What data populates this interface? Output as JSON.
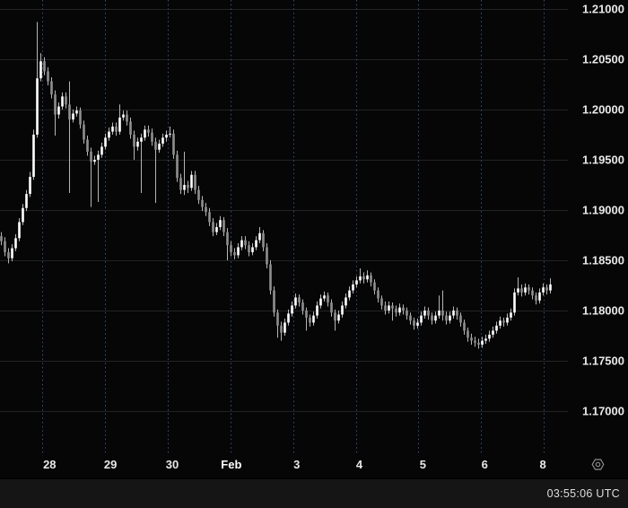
{
  "status_bar": {
    "clock": "03:55:06 UTC"
  },
  "icons": {
    "settings": "hexagon-with-dot"
  },
  "chart_data": {
    "type": "candlestick",
    "title": "",
    "xlabel": "",
    "ylabel": "",
    "grid": true,
    "legend": "none",
    "y_axis": {
      "side": "right",
      "tick_step": 0.005,
      "visible_range": [
        1.1658,
        1.2109
      ],
      "ticks": [
        {
          "label": "1.21000",
          "price": 1.21
        },
        {
          "label": "1.20500",
          "price": 1.205
        },
        {
          "label": "1.20000",
          "price": 1.2
        },
        {
          "label": "1.19500",
          "price": 1.195
        },
        {
          "label": "1.19000",
          "price": 1.19
        },
        {
          "label": "1.18500",
          "price": 1.185
        },
        {
          "label": "1.18000",
          "price": 1.18
        },
        {
          "label": "1.17500",
          "price": 1.175
        },
        {
          "label": "1.17000",
          "price": 1.17
        }
      ]
    },
    "x_axis": {
      "ticks": [
        {
          "label": "28",
          "is_month": false
        },
        {
          "label": "29",
          "is_month": false
        },
        {
          "label": "30",
          "is_month": false
        },
        {
          "label": "Feb",
          "is_month": true
        },
        {
          "label": "3",
          "is_month": false
        },
        {
          "label": "4",
          "is_month": false
        },
        {
          "label": "5",
          "is_month": false
        },
        {
          "label": "6",
          "is_month": false
        },
        {
          "label": "8",
          "is_month": false
        }
      ]
    },
    "colors": {
      "background": "#060606",
      "candle_up": "#ffffff",
      "candle_down": "#8f8f8f",
      "wick": "#b5b5b5",
      "grid_horizontal": "#232323",
      "grid_vertical_dashed": "#30508c",
      "axis_text": "#e8e8e8",
      "month_text": "#ffffff",
      "icon": "#8f8f8f"
    },
    "candles_ohlc": [
      [
        1.1874,
        1.1878,
        1.1865,
        1.1869
      ],
      [
        1.1869,
        1.1873,
        1.1854,
        1.1858
      ],
      [
        1.1858,
        1.1862,
        1.1847,
        1.1852
      ],
      [
        1.1852,
        1.1866,
        1.1849,
        1.1862
      ],
      [
        1.1862,
        1.1876,
        1.1859,
        1.1872
      ],
      [
        1.1872,
        1.1892,
        1.1869,
        1.1888
      ],
      [
        1.1888,
        1.1906,
        1.1885,
        1.1902
      ],
      [
        1.1902,
        1.192,
        1.1899,
        1.1916
      ],
      [
        1.1916,
        1.1938,
        1.1913,
        1.1933
      ],
      [
        1.1933,
        1.198,
        1.193,
        1.1975
      ],
      [
        1.1975,
        1.2087,
        1.1972,
        1.2031
      ],
      [
        1.2031,
        1.2056,
        1.2028,
        1.2048
      ],
      [
        1.2048,
        1.2052,
        1.2034,
        1.2038
      ],
      [
        1.2038,
        1.2042,
        1.2024,
        1.2028
      ],
      [
        1.2028,
        1.2032,
        1.2011,
        1.2015
      ],
      [
        1.2015,
        1.2019,
        1.1974,
        1.1995
      ],
      [
        1.1995,
        1.2007,
        1.1991,
        1.2003
      ],
      [
        1.2003,
        1.2017,
        1.2,
        1.2013
      ],
      [
        1.2013,
        1.2017,
        1.2001,
        1.2005
      ],
      [
        1.2005,
        1.2028,
        1.1917,
        1.199
      ],
      [
        1.199,
        1.2,
        1.1987,
        1.1996
      ],
      [
        1.1996,
        1.2003,
        1.1993,
        1.1999
      ],
      [
        1.1999,
        1.2002,
        1.1981,
        1.1985
      ],
      [
        1.1985,
        1.1989,
        1.1966,
        1.197
      ],
      [
        1.197,
        1.1974,
        1.1954,
        1.1958
      ],
      [
        1.1958,
        1.1962,
        1.1903,
        1.1948
      ],
      [
        1.1948,
        1.1954,
        1.1945,
        1.195
      ],
      [
        1.195,
        1.1959,
        1.1908,
        1.1955
      ],
      [
        1.1955,
        1.1967,
        1.1952,
        1.1963
      ],
      [
        1.1963,
        1.1976,
        1.196,
        1.1972
      ],
      [
        1.1972,
        1.1982,
        1.1969,
        1.1978
      ],
      [
        1.1978,
        1.1987,
        1.1975,
        1.1983
      ],
      [
        1.1983,
        1.1987,
        1.1974,
        1.1978
      ],
      [
        1.1978,
        1.2005,
        1.1975,
        1.1992
      ],
      [
        1.1992,
        1.1999,
        1.1989,
        1.1995
      ],
      [
        1.1995,
        1.1999,
        1.1984,
        1.1988
      ],
      [
        1.1988,
        1.1992,
        1.1971,
        1.1975
      ],
      [
        1.1975,
        1.1979,
        1.195,
        1.1963
      ],
      [
        1.1963,
        1.1972,
        1.1959,
        1.1968
      ],
      [
        1.1968,
        1.1976,
        1.1917,
        1.1972
      ],
      [
        1.1972,
        1.1984,
        1.1969,
        1.198
      ],
      [
        1.198,
        1.1984,
        1.1973,
        1.1977
      ],
      [
        1.1977,
        1.1981,
        1.1964,
        1.1968
      ],
      [
        1.1968,
        1.1972,
        1.1907,
        1.196
      ],
      [
        1.196,
        1.197,
        1.1957,
        1.1966
      ],
      [
        1.1966,
        1.1976,
        1.1963,
        1.1972
      ],
      [
        1.1972,
        1.1979,
        1.1968,
        1.1975
      ],
      [
        1.1975,
        1.1983,
        1.1972,
        1.1976
      ],
      [
        1.1976,
        1.198,
        1.1951,
        1.1955
      ],
      [
        1.1955,
        1.1959,
        1.1928,
        1.1932
      ],
      [
        1.1932,
        1.1936,
        1.1916,
        1.192
      ],
      [
        1.192,
        1.1958,
        1.1915,
        1.1925
      ],
      [
        1.1925,
        1.1929,
        1.1917,
        1.1922
      ],
      [
        1.1922,
        1.1939,
        1.1919,
        1.1935
      ],
      [
        1.1935,
        1.1939,
        1.1916,
        1.192
      ],
      [
        1.192,
        1.1924,
        1.1906,
        1.191
      ],
      [
        1.191,
        1.1914,
        1.1899,
        1.1903
      ],
      [
        1.1903,
        1.1907,
        1.1894,
        1.1898
      ],
      [
        1.1898,
        1.1902,
        1.1884,
        1.1888
      ],
      [
        1.1888,
        1.1892,
        1.1874,
        1.1878
      ],
      [
        1.1878,
        1.1887,
        1.1875,
        1.1883
      ],
      [
        1.1883,
        1.1894,
        1.188,
        1.189
      ],
      [
        1.189,
        1.1893,
        1.1874,
        1.1878
      ],
      [
        1.1878,
        1.1882,
        1.185,
        1.1865
      ],
      [
        1.1865,
        1.1869,
        1.1854,
        1.1858
      ],
      [
        1.1858,
        1.1862,
        1.1851,
        1.1855
      ],
      [
        1.1855,
        1.1867,
        1.1852,
        1.1863
      ],
      [
        1.1863,
        1.1874,
        1.186,
        1.187
      ],
      [
        1.187,
        1.1874,
        1.1861,
        1.1865
      ],
      [
        1.1865,
        1.1869,
        1.1854,
        1.1858
      ],
      [
        1.1858,
        1.1867,
        1.1855,
        1.1863
      ],
      [
        1.1863,
        1.1874,
        1.186,
        1.187
      ],
      [
        1.187,
        1.1883,
        1.1867,
        1.1877
      ],
      [
        1.1877,
        1.188,
        1.1859,
        1.1863
      ],
      [
        1.1863,
        1.1867,
        1.1842,
        1.1846
      ],
      [
        1.1846,
        1.185,
        1.1816,
        1.182
      ],
      [
        1.182,
        1.1824,
        1.1794,
        1.1798
      ],
      [
        1.1798,
        1.1801,
        1.1773,
        1.1785
      ],
      [
        1.1785,
        1.1789,
        1.177,
        1.1778
      ],
      [
        1.1778,
        1.1792,
        1.1775,
        1.1788
      ],
      [
        1.1788,
        1.1801,
        1.1785,
        1.1797
      ],
      [
        1.1797,
        1.1809,
        1.1794,
        1.1805
      ],
      [
        1.1805,
        1.1817,
        1.1802,
        1.1813
      ],
      [
        1.1813,
        1.1816,
        1.1804,
        1.1808
      ],
      [
        1.1808,
        1.1811,
        1.1796,
        1.18
      ],
      [
        1.18,
        1.1803,
        1.178,
        1.1793
      ],
      [
        1.1793,
        1.1796,
        1.1784,
        1.1788
      ],
      [
        1.1788,
        1.1799,
        1.1785,
        1.1795
      ],
      [
        1.1795,
        1.1809,
        1.1792,
        1.1805
      ],
      [
        1.1805,
        1.1816,
        1.1802,
        1.1812
      ],
      [
        1.1812,
        1.1819,
        1.1809,
        1.1815
      ],
      [
        1.1815,
        1.1818,
        1.1804,
        1.1808
      ],
      [
        1.1808,
        1.1811,
        1.1794,
        1.1798
      ],
      [
        1.1798,
        1.1801,
        1.178,
        1.179
      ],
      [
        1.179,
        1.18,
        1.1787,
        1.1796
      ],
      [
        1.1796,
        1.1809,
        1.1793,
        1.1805
      ],
      [
        1.1805,
        1.1817,
        1.1802,
        1.1813
      ],
      [
        1.1813,
        1.1824,
        1.181,
        1.182
      ],
      [
        1.182,
        1.183,
        1.1817,
        1.1826
      ],
      [
        1.1826,
        1.1834,
        1.1823,
        1.183
      ],
      [
        1.183,
        1.1842,
        1.1827,
        1.1834
      ],
      [
        1.1834,
        1.1838,
        1.1827,
        1.1831
      ],
      [
        1.1831,
        1.184,
        1.1828,
        1.1835
      ],
      [
        1.1835,
        1.1838,
        1.1824,
        1.1828
      ],
      [
        1.1828,
        1.1831,
        1.1816,
        1.182
      ],
      [
        1.182,
        1.1823,
        1.1808,
        1.1812
      ],
      [
        1.1812,
        1.1815,
        1.1801,
        1.1805
      ],
      [
        1.1805,
        1.1809,
        1.1796,
        1.18
      ],
      [
        1.18,
        1.1809,
        1.1797,
        1.1805
      ],
      [
        1.1805,
        1.1808,
        1.179,
        1.1802
      ],
      [
        1.1802,
        1.1805,
        1.1794,
        1.1798
      ],
      [
        1.1798,
        1.1807,
        1.1795,
        1.1803
      ],
      [
        1.1803,
        1.1806,
        1.1796,
        1.18
      ],
      [
        1.18,
        1.1803,
        1.1791,
        1.1795
      ],
      [
        1.1795,
        1.1798,
        1.1786,
        1.179
      ],
      [
        1.179,
        1.1793,
        1.1781,
        1.1785
      ],
      [
        1.1785,
        1.1792,
        1.1782,
        1.1788
      ],
      [
        1.1788,
        1.1799,
        1.1785,
        1.1795
      ],
      [
        1.1795,
        1.1804,
        1.1792,
        1.18
      ],
      [
        1.18,
        1.1803,
        1.1791,
        1.1795
      ],
      [
        1.1795,
        1.1798,
        1.1786,
        1.179
      ],
      [
        1.179,
        1.1799,
        1.1787,
        1.1795
      ],
      [
        1.1795,
        1.1815,
        1.1792,
        1.18
      ],
      [
        1.18,
        1.182,
        1.179,
        1.1795
      ],
      [
        1.1795,
        1.1799,
        1.1786,
        1.179
      ],
      [
        1.179,
        1.1799,
        1.1787,
        1.1795
      ],
      [
        1.1795,
        1.1804,
        1.1792,
        1.18
      ],
      [
        1.18,
        1.1803,
        1.1791,
        1.1795
      ],
      [
        1.1795,
        1.1798,
        1.1784,
        1.1788
      ],
      [
        1.1788,
        1.1791,
        1.1776,
        1.178
      ],
      [
        1.178,
        1.1783,
        1.1769,
        1.1773
      ],
      [
        1.1773,
        1.1777,
        1.1766,
        1.177
      ],
      [
        1.177,
        1.1774,
        1.1764,
        1.1768
      ],
      [
        1.1768,
        1.1772,
        1.1762,
        1.1766
      ],
      [
        1.1766,
        1.1774,
        1.1763,
        1.177
      ],
      [
        1.177,
        1.1776,
        1.1767,
        1.1772
      ],
      [
        1.1772,
        1.178,
        1.1769,
        1.1776
      ],
      [
        1.1776,
        1.1784,
        1.1773,
        1.178
      ],
      [
        1.178,
        1.1789,
        1.1777,
        1.1785
      ],
      [
        1.1785,
        1.1794,
        1.1782,
        1.179
      ],
      [
        1.179,
        1.1793,
        1.1784,
        1.1788
      ],
      [
        1.1788,
        1.1797,
        1.1785,
        1.1793
      ],
      [
        1.1793,
        1.1802,
        1.179,
        1.1798
      ],
      [
        1.1798,
        1.1822,
        1.1795,
        1.1818
      ],
      [
        1.1818,
        1.1833,
        1.1815,
        1.1822
      ],
      [
        1.1822,
        1.1826,
        1.1814,
        1.1818
      ],
      [
        1.1818,
        1.1827,
        1.1815,
        1.1823
      ],
      [
        1.1823,
        1.1826,
        1.1816,
        1.182
      ],
      [
        1.182,
        1.1823,
        1.1811,
        1.1815
      ],
      [
        1.1815,
        1.1818,
        1.1806,
        1.181
      ],
      [
        1.181,
        1.1822,
        1.1807,
        1.1818
      ],
      [
        1.1818,
        1.1827,
        1.1815,
        1.1823
      ],
      [
        1.1823,
        1.1826,
        1.1816,
        1.182
      ],
      [
        1.182,
        1.1832,
        1.1817,
        1.1826
      ]
    ]
  }
}
